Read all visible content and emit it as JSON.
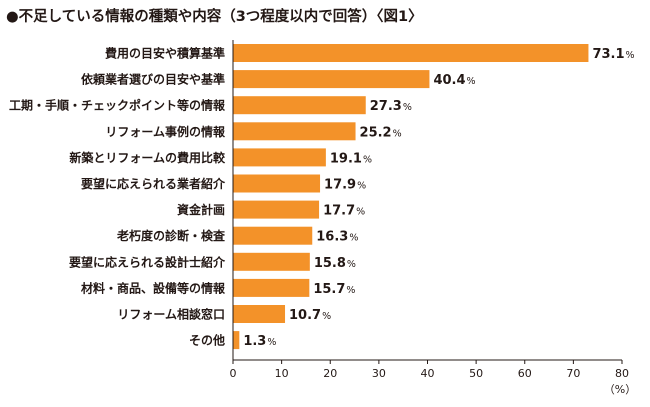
{
  "title": "●不足している情報の種類や内容（3つ程度以内で回答）〈図1〉",
  "chart_data": {
    "type": "bar",
    "orientation": "horizontal",
    "title": "●不足している情報の種類や内容（3つ程度以内で回答）〈図1〉",
    "categories": [
      "費用の目安や積算基準",
      "依頼業者選びの目安や基準",
      "工期・手順・チェックポイント等の情報",
      "リフォーム事例の情報",
      "新築とリフォームの費用比較",
      "要望に応えられる業者紹介",
      "資金計画",
      "老朽度の診断・検査",
      "要望に応えられる設計士紹介",
      "材料・商品、設備等の情報",
      "リフォーム相談窓口",
      "その他"
    ],
    "values": [
      73.1,
      40.4,
      27.3,
      25.2,
      19.1,
      17.9,
      17.7,
      16.3,
      15.8,
      15.7,
      10.7,
      1.3
    ],
    "value_suffix": "%",
    "xlim": [
      0,
      80
    ],
    "xticks": [
      0,
      10,
      20,
      30,
      40,
      50,
      60,
      70,
      80
    ],
    "xunit": "（%）",
    "bar_color": "#f39229",
    "axis_color": "#231815",
    "grid": false
  }
}
